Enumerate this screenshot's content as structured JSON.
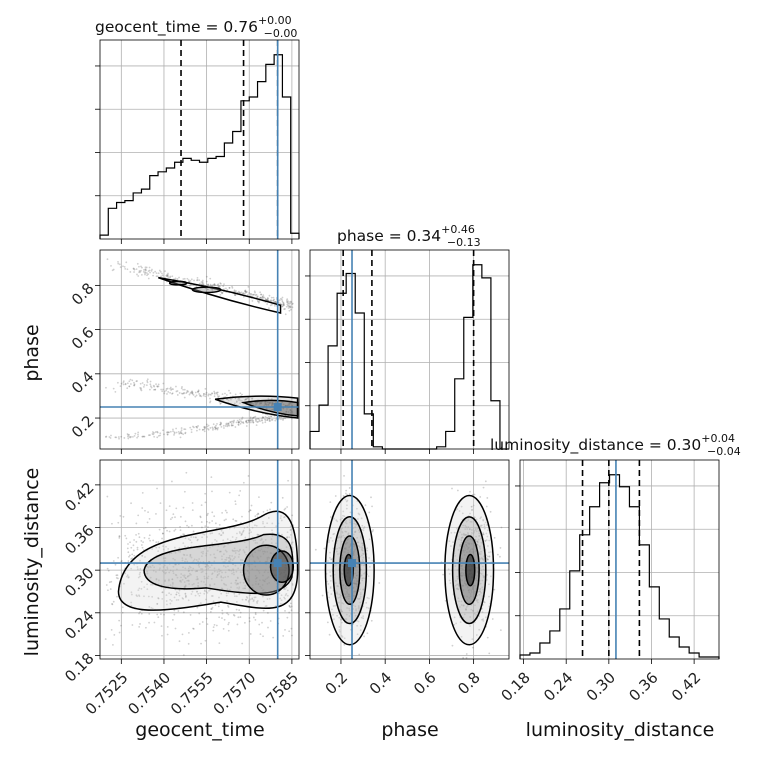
{
  "colors": {
    "truth": "#4682b4",
    "hist": "#000000",
    "grid": "#b0b0b0"
  },
  "params": [
    "geocent_time",
    "phase",
    "luminosity_distance"
  ],
  "titles": {
    "geocent_time": {
      "main": "geocent_time = 0.76",
      "sup": "+0.00",
      "sub": "−0.00"
    },
    "phase": {
      "main": "phase = 0.34",
      "sup": "+0.46",
      "sub": "−0.13"
    },
    "luminosity_distance": {
      "main": "luminosity_distance = 0.30",
      "sup": "+0.04",
      "sub": "−0.04"
    }
  },
  "axis_labels": {
    "x": [
      "geocent_time",
      "phase",
      "luminosity_distance"
    ],
    "y": [
      "phase",
      "luminosity_distance"
    ]
  },
  "chart_data": {
    "type": "corner",
    "truths": {
      "geocent_time": 0.758,
      "phase": 0.25,
      "luminosity_distance": 0.31
    },
    "axes": {
      "geocent_time": {
        "range": [
          0.75175,
          0.75875
        ],
        "ticks": [
          "0.7525",
          "0.7540",
          "0.7555",
          "0.7570",
          "0.7585"
        ],
        "tick_values": [
          0.7525,
          0.754,
          0.7555,
          0.757,
          0.7585
        ]
      },
      "phase": {
        "range": [
          0.06,
          0.96
        ],
        "ticks": [
          "0.2",
          "0.4",
          "0.6",
          "0.8"
        ],
        "tick_values": [
          0.2,
          0.4,
          0.6,
          0.8
        ]
      },
      "luminosity_distance": {
        "range": [
          0.175,
          0.455
        ],
        "ticks": [
          "0.18",
          "0.24",
          "0.30",
          "0.36",
          "0.42"
        ],
        "tick_values": [
          0.18,
          0.24,
          0.3,
          0.36,
          0.42
        ]
      }
    },
    "histograms": {
      "geocent_time": {
        "edges_range": [
          0.75175,
          0.75875
        ],
        "counts": [
          2,
          16,
          19,
          20,
          24,
          26,
          33,
          35,
          37,
          40,
          42,
          41,
          40,
          42,
          43,
          50,
          56,
          72,
          74,
          82,
          91,
          96,
          74,
          3
        ],
        "quantiles": [
          0.7546,
          0.7568,
          0.758
        ]
      },
      "phase": {
        "edges_range": [
          0.06,
          0.96
        ],
        "counts": [
          8,
          20,
          47,
          71,
          80,
          62,
          16,
          1,
          0,
          0,
          0,
          0,
          0,
          0,
          1,
          8,
          32,
          60,
          84,
          78,
          22,
          0
        ],
        "quantiles": [
          0.21,
          0.34,
          0.8
        ]
      },
      "luminosity_distance": {
        "edges_range": [
          0.175,
          0.455
        ],
        "counts": [
          2,
          3,
          8,
          14,
          25,
          44,
          62,
          76,
          88,
          92,
          86,
          76,
          57,
          36,
          20,
          11,
          6,
          3,
          1,
          1
        ],
        "quantiles": [
          0.263,
          0.3,
          0.343
        ]
      }
    }
  }
}
